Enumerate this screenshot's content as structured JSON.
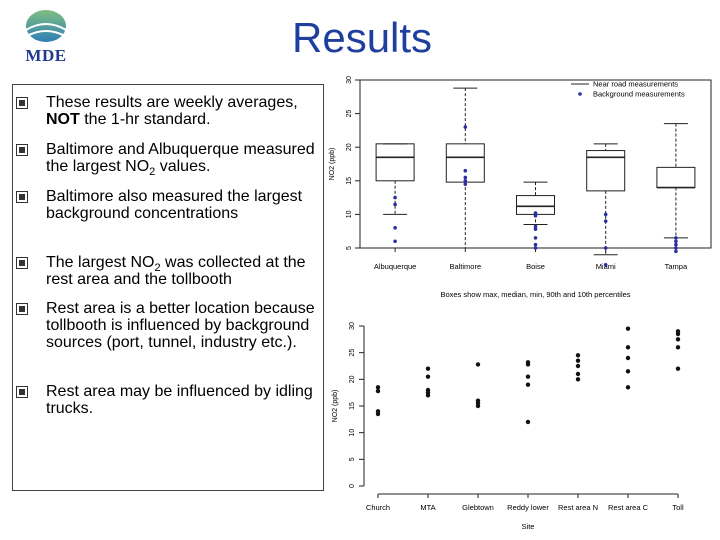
{
  "page": {
    "title": "Results",
    "logo_text": "MDE"
  },
  "bullets": [
    {
      "pre": "These results are weekly averages, ",
      "bold": "NOT",
      "post": " the 1-hr standard."
    },
    {
      "pre": "Baltimore and Albuquerque measured the largest NO",
      "sub": "2",
      "post": " values."
    },
    {
      "pre": "Baltimore also measured the largest background concentrations"
    },
    {
      "pre": "The largest NO",
      "sub": "2",
      "post": " was collected at the rest area and the tollbooth"
    },
    {
      "pre": "Rest area is a better location because tollbooth is influenced by background sources (port, tunnel, industry etc.)."
    },
    {
      "pre": "Rest area may be influenced by idling trucks."
    }
  ],
  "colors": {
    "title": "#1f3f9f",
    "points": "#2b2fa0",
    "logo": "#1f3a8a"
  },
  "chart_data": [
    {
      "type": "box",
      "ylabel": "NO2 (ppb)",
      "ylim": [
        5,
        30
      ],
      "yticks": [
        5,
        10,
        15,
        20,
        25,
        30
      ],
      "categories": [
        "Albuquerque",
        "Baltimore",
        "Boise",
        "Miami",
        "Tampa"
      ],
      "caption": "Boxes show max, median, min, 90th and 10th percentiles",
      "legend": {
        "position": "top-right",
        "entries": [
          "Near road measurements",
          "Background measurements"
        ]
      },
      "near_road": [
        {
          "max": 20.5,
          "p90": 20.5,
          "median": 18.5,
          "p10": 15.0,
          "min": 10.0
        },
        {
          "max": 28.8,
          "p90": 20.5,
          "median": 18.5,
          "p10": 14.8,
          "min": 5.0
        },
        {
          "max": 14.8,
          "p90": 12.8,
          "median": 11.2,
          "p10": 10.0,
          "min": 8.5
        },
        {
          "max": 20.5,
          "p90": 19.5,
          "median": 18.5,
          "p10": 13.5,
          "min": 4.0
        },
        {
          "max": 23.5,
          "p90": 17.0,
          "median": 14.0,
          "p10": 14.0,
          "min": 6.5
        }
      ],
      "background": [
        [
          12.5,
          11.5,
          8.0,
          6.0
        ],
        [
          23.0,
          16.5,
          15.5,
          15.0,
          14.5
        ],
        [
          10.2,
          9.8,
          8.2,
          7.8,
          6.5,
          5.5,
          5.0
        ],
        [
          10.0,
          9.0,
          5.0,
          2.5
        ],
        [
          6.5,
          6.0,
          5.5,
          5.0,
          4.5
        ]
      ]
    },
    {
      "type": "scatter",
      "ylabel": "NO2 (ppb)",
      "xlabel": "Site",
      "ylim": [
        0,
        30
      ],
      "yticks": [
        0,
        5,
        10,
        15,
        20,
        25,
        30
      ],
      "categories": [
        "Church",
        "MTA",
        "Glebtown",
        "Reddy lower",
        "Rest area N",
        "Rest area C",
        "Toll"
      ],
      "values": [
        [
          18.5,
          17.8,
          14.0,
          13.5
        ],
        [
          22.0,
          20.5,
          18.0,
          17.5,
          17.0
        ],
        [
          22.8,
          16.0,
          15.5,
          15.0
        ],
        [
          23.2,
          22.8,
          20.5,
          19.0,
          12.0
        ],
        [
          24.5,
          23.5,
          22.5,
          21.0,
          20.0
        ],
        [
          29.5,
          26.0,
          24.0,
          21.5,
          18.5
        ],
        [
          29.0,
          28.5,
          27.5,
          26.0,
          22.0
        ]
      ]
    }
  ]
}
